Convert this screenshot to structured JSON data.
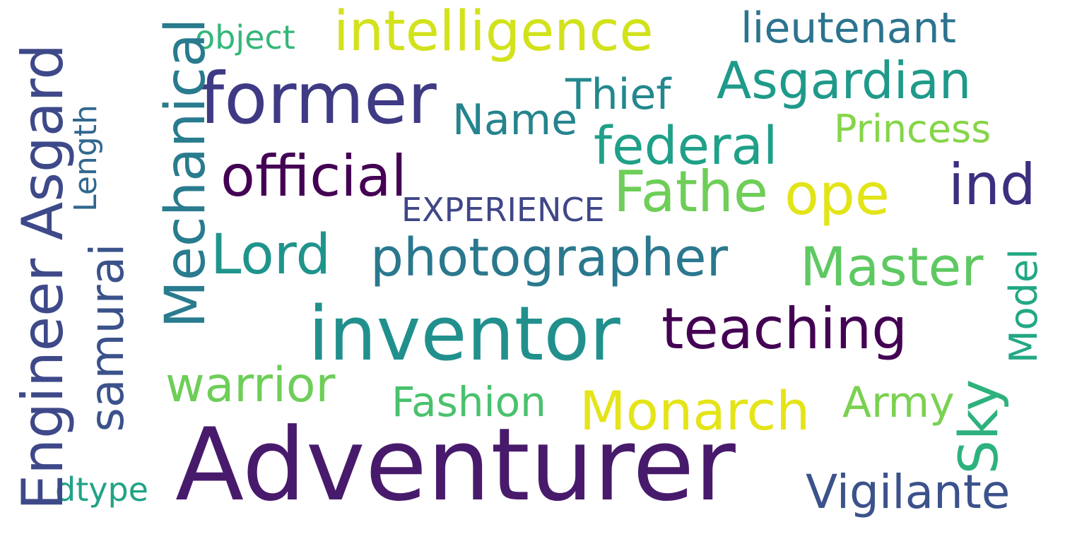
{
  "words": [
    {
      "text": "Adventurer",
      "color": "#481a6c"
    },
    {
      "text": "inventor",
      "color": "#21908d"
    },
    {
      "text": "former",
      "color": "#3e3a84"
    },
    {
      "text": "intelligence",
      "color": "#d2e21b"
    },
    {
      "text": "lieutenant",
      "color": "#2c738e"
    },
    {
      "text": "object",
      "color": "#35b779"
    },
    {
      "text": "Asgardian",
      "color": "#1f9a8a"
    },
    {
      "text": "Thief",
      "color": "#23888e"
    },
    {
      "text": "Name",
      "color": "#25848e"
    },
    {
      "text": "Princess",
      "color": "#86d549"
    },
    {
      "text": "federal",
      "color": "#1fa088"
    },
    {
      "text": "official",
      "color": "#440154"
    },
    {
      "text": "Fathe",
      "color": "#6ece58"
    },
    {
      "text": "ope",
      "color": "#e2e418"
    },
    {
      "text": "ind",
      "color": "#3b2f80"
    },
    {
      "text": "EXPERIENCE",
      "color": "#404688"
    },
    {
      "text": "Lord",
      "color": "#1f948c"
    },
    {
      "text": "photographer",
      "color": "#2a788e"
    },
    {
      "text": "Master",
      "color": "#5ec962"
    },
    {
      "text": "teaching",
      "color": "#440154"
    },
    {
      "text": "warrior",
      "color": "#6ece58"
    },
    {
      "text": "Fashion",
      "color": "#4ac16d"
    },
    {
      "text": "Monarch",
      "color": "#e5e419"
    },
    {
      "text": "Army",
      "color": "#7ad151"
    },
    {
      "text": "Vigilante",
      "color": "#3b528b"
    },
    {
      "text": "dtype",
      "color": "#20a386"
    },
    {
      "text": "Engineer Asgard",
      "color": "#3e4989"
    },
    {
      "text": "samurai",
      "color": "#3b528b"
    },
    {
      "text": "Length",
      "color": "#31688e"
    },
    {
      "text": "Mechanical",
      "color": "#297b8e"
    },
    {
      "text": "Sky",
      "color": "#2db27d"
    },
    {
      "text": "Model",
      "color": "#22a884"
    }
  ]
}
